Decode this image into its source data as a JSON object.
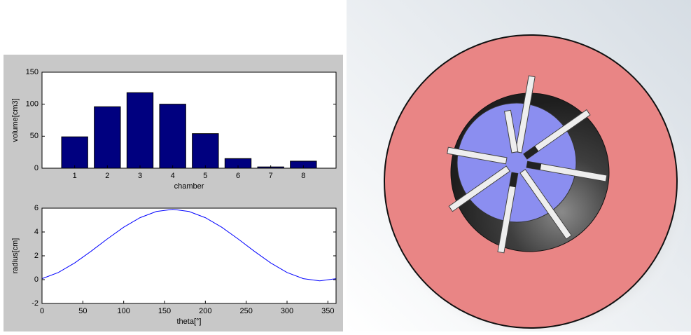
{
  "chart_data": [
    {
      "type": "bar",
      "xlabel": "chamber",
      "ylabel": "volume[cm3]",
      "categories": [
        "1",
        "2",
        "3",
        "4",
        "5",
        "6",
        "7",
        "8"
      ],
      "values": [
        49,
        96,
        118,
        100,
        54,
        15,
        2,
        11
      ],
      "color": "#00007f",
      "ylim": [
        0,
        150
      ],
      "yticks": [
        0,
        50,
        100,
        150
      ]
    },
    {
      "type": "line",
      "xlabel": "theta[°]",
      "ylabel": "radius[cm]",
      "x": [
        0,
        20,
        40,
        60,
        80,
        100,
        120,
        140,
        160,
        180,
        200,
        220,
        240,
        260,
        280,
        300,
        320,
        340,
        360
      ],
      "values": [
        0.08,
        0.6,
        1.4,
        2.38,
        3.42,
        4.4,
        5.2,
        5.72,
        5.9,
        5.72,
        5.2,
        4.4,
        3.42,
        2.38,
        1.4,
        0.6,
        0.08,
        -0.1,
        0.08
      ],
      "color": "#0000ff",
      "xlim": [
        0,
        360
      ],
      "xticks": [
        0,
        50,
        100,
        150,
        200,
        250,
        300,
        350
      ],
      "ylim": [
        -2,
        6
      ],
      "yticks": [
        -2,
        0,
        2,
        4,
        6
      ]
    }
  ]
}
